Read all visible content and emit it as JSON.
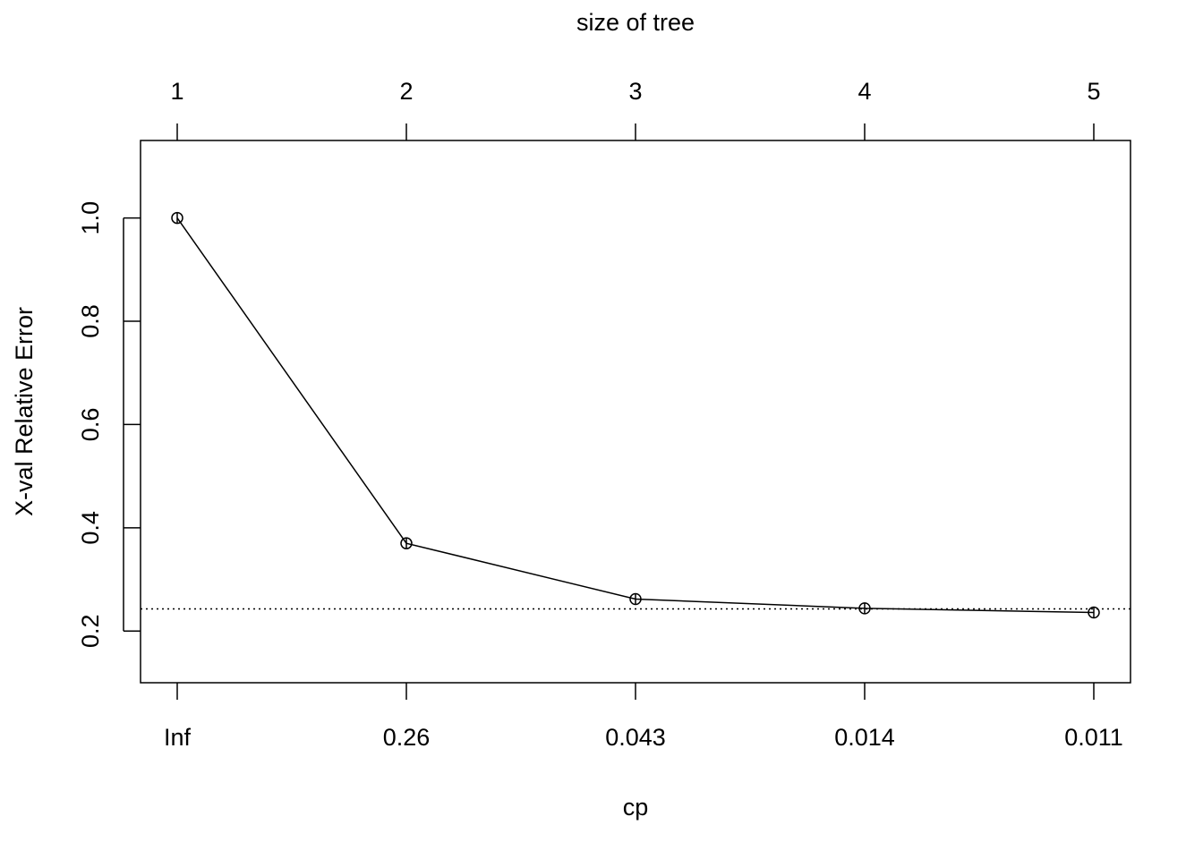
{
  "chart_data": {
    "type": "line",
    "title": "",
    "xlabel": "cp",
    "ylabel": "X-val Relative Error",
    "top_axis_label": "size of tree",
    "top_ticks": [
      "1",
      "2",
      "3",
      "4",
      "5"
    ],
    "bottom_ticks": [
      "Inf",
      "0.26",
      "0.043",
      "0.014",
      "0.011"
    ],
    "y_ticks": [
      "0.2",
      "0.4",
      "0.6",
      "0.8",
      "1.0"
    ],
    "ylim": [
      0.1,
      1.15
    ],
    "series": [
      {
        "values": [
          1.0,
          0.37,
          0.262,
          0.244,
          0.236
        ]
      }
    ],
    "reference_line": {
      "value": 0.243,
      "style": "dotted"
    },
    "grid": false,
    "legend": "none"
  }
}
